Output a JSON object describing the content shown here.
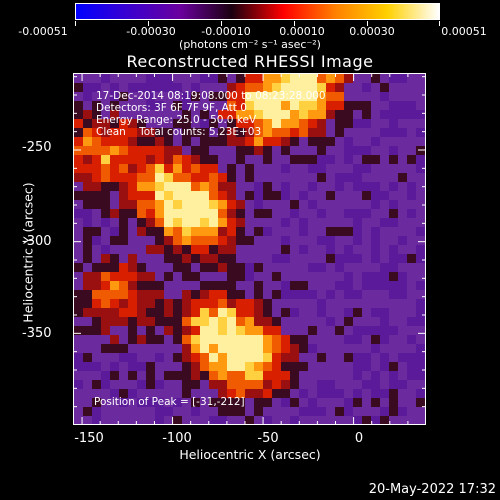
{
  "colorbar": {
    "ticks": [
      "-0.00051",
      "-0.00030",
      "-0.00010",
      "0.00010",
      "0.00030",
      "0.00051"
    ],
    "unit": "(photons cm⁻² s⁻¹ asec⁻²)",
    "colors": [
      "#0000ff",
      "#3a00d0",
      "#6a009e",
      "#1a0010",
      "#ff0000",
      "#ff8000",
      "#ffd000",
      "#ffffff"
    ]
  },
  "chart_data": {
    "type": "heatmap",
    "title": "Reconstructed RHESSI Image",
    "xlabel": "Heliocentric X (arcsec)",
    "ylabel": "Heliocentric Y (arcsec)",
    "xlim": [
      -155,
      40
    ],
    "ylim": [
      -400,
      -208
    ],
    "xticks": [
      "-150",
      "-100",
      "-50",
      "0"
    ],
    "yticks": [
      "-250",
      "-300",
      "-350"
    ],
    "colorscale_range": [
      -0.00051,
      0.00051
    ],
    "peak_position": [
      -31,
      -212
    ],
    "bright_regions": [
      {
        "x": -50,
        "y": -228,
        "level": 0.85
      },
      {
        "x": -25,
        "y": -215,
        "level": 0.95
      },
      {
        "x": -85,
        "y": -285,
        "level": 0.9
      },
      {
        "x": -105,
        "y": -270,
        "level": 0.7
      },
      {
        "x": -75,
        "y": -350,
        "level": 0.9
      },
      {
        "x": -55,
        "y": -365,
        "level": 0.85
      },
      {
        "x": -140,
        "y": -250,
        "level": 0.6
      },
      {
        "x": -130,
        "y": -330,
        "level": 0.55
      }
    ]
  },
  "annotations": {
    "time_range": "17-Dec-2014 08:19:08.000 to 08:23:28.000",
    "detectors": "Detectors: 3F 6F 7F 9F, Att 0",
    "energy_range": "Energy Range: 25.0 - 50.0 keV",
    "method_counts": "Clean    Total counts: 5.23E+03",
    "peak": "Position of Peak = [-31,-212]"
  },
  "footer": {
    "date": "20-May-2022 17:32"
  }
}
